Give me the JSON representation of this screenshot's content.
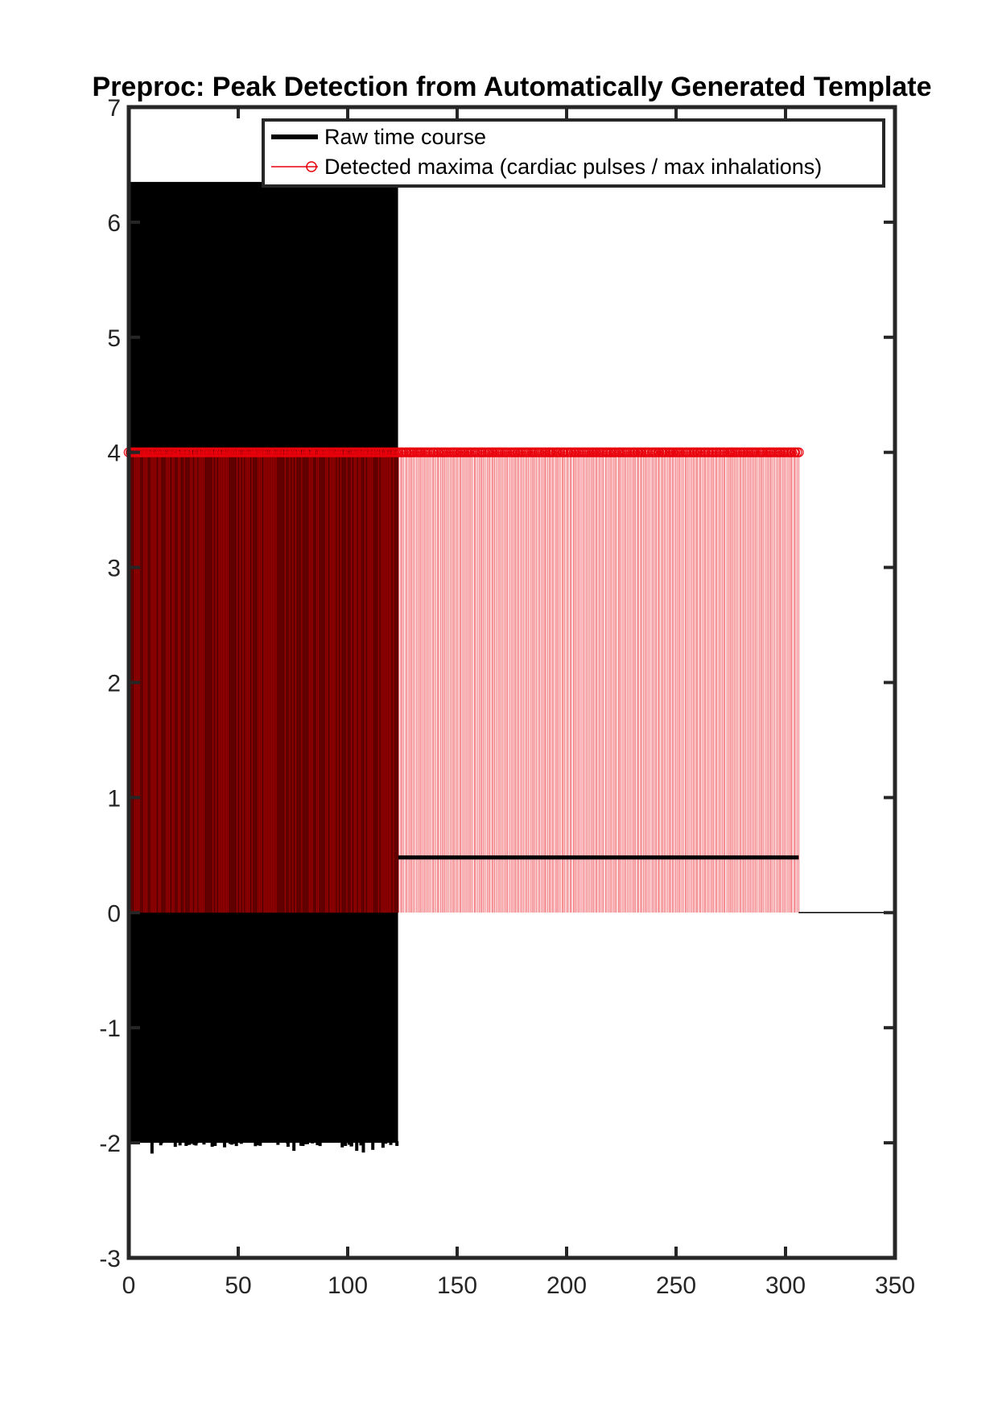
{
  "chart_data": {
    "type": "line",
    "title": "Preproc: Peak Detection from Automatically Generated Template",
    "xlabel": "",
    "ylabel": "",
    "xlim": [
      0,
      350
    ],
    "ylim": [
      -3,
      7
    ],
    "x_ticks": [
      "0",
      "50",
      "100",
      "150",
      "200",
      "250",
      "300",
      "350"
    ],
    "y_ticks": [
      "-3",
      "-2",
      "-1",
      "0",
      "1",
      "2",
      "3",
      "4",
      "5",
      "6",
      "7"
    ],
    "grid": false,
    "legend_position": "top",
    "series": [
      {
        "name": "Raw time course",
        "color": "#000000",
        "style": "solid thick line",
        "description_values": {
          "dense_oscillation_x_range": [
            0,
            123
          ],
          "upper_envelope": 6.35,
          "lower_envelope": -2.0,
          "occasional_minima": -2.1,
          "flat_after_x": 123,
          "flat_level_segment1": 0.48,
          "flat_segment1_x_range": [
            123,
            306
          ],
          "flat_level_segment2": 0.0,
          "flat_segment2_x_range": [
            306,
            350
          ]
        }
      },
      {
        "name": "Detected maxima (cardiac pulses / max inhalations)",
        "color": "#e8000b",
        "style": "stem with circle markers",
        "description_values": {
          "peak_value": 4,
          "baseline": 0,
          "x_range": [
            0,
            306
          ],
          "approx_peak_count": 420
        }
      }
    ]
  }
}
